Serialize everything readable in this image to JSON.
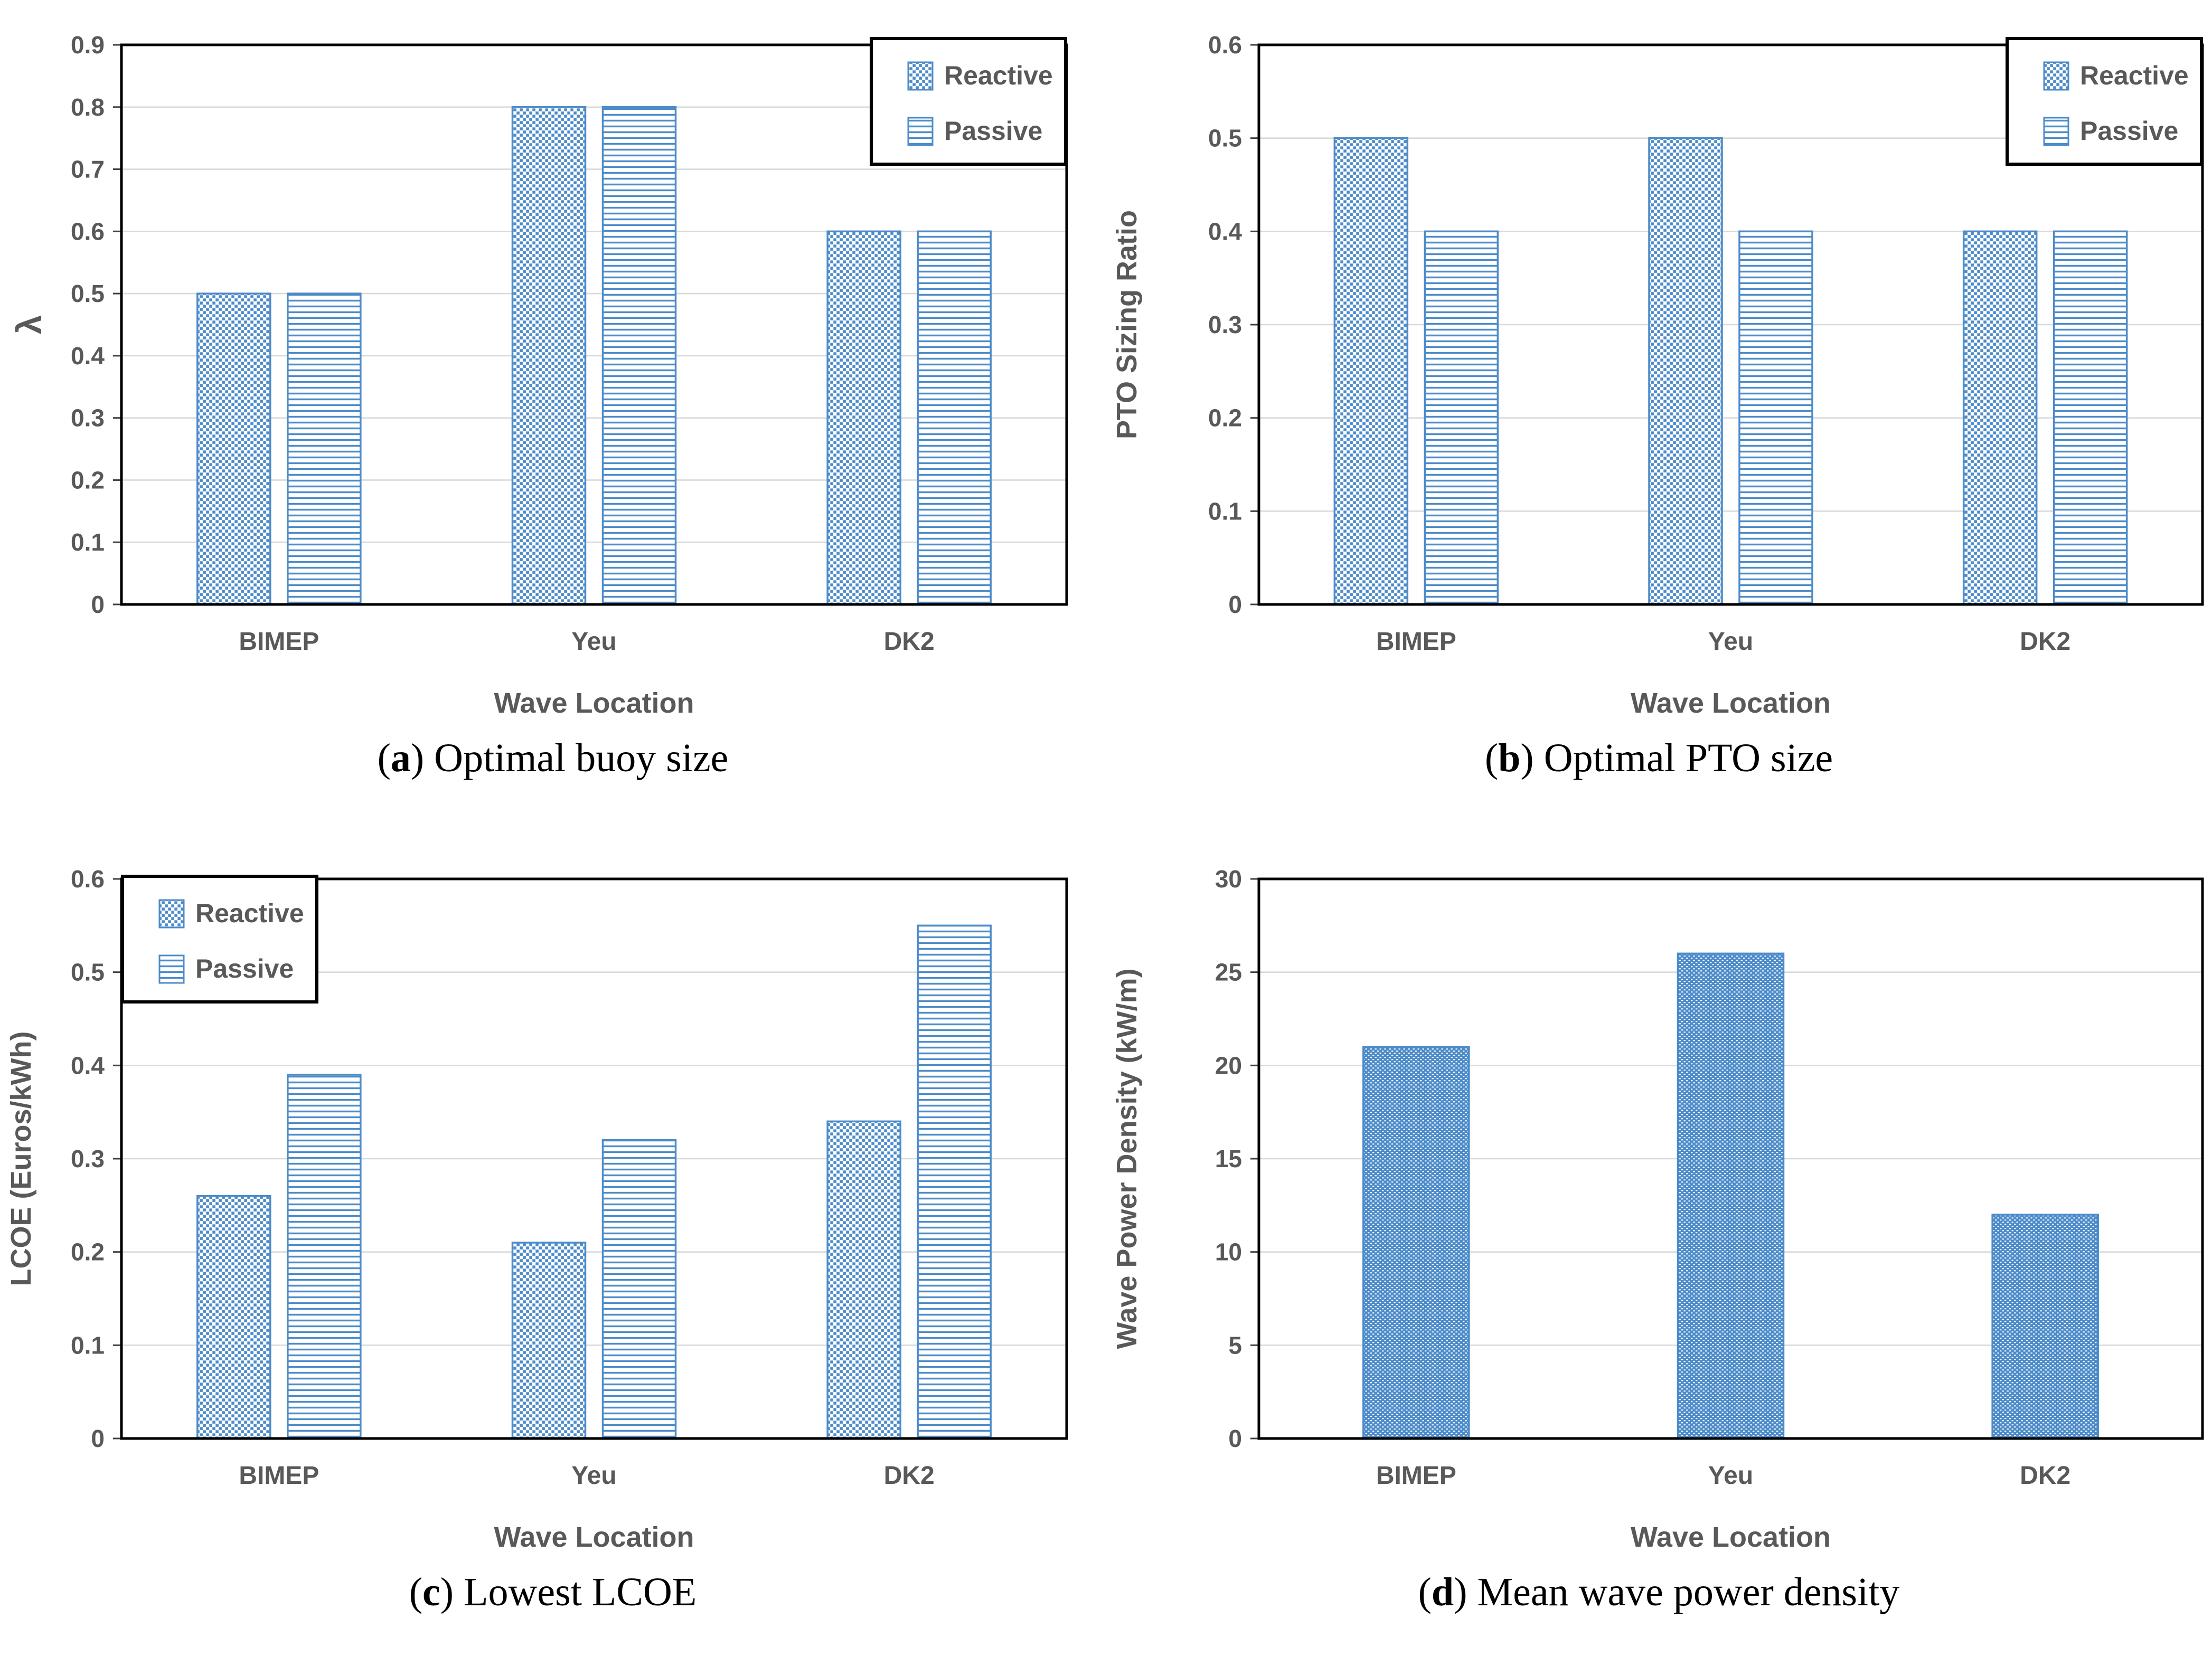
{
  "colors": {
    "bar_blue": "#4C8BC9",
    "grid_line": "#D9D9D9",
    "axis_text": "#595959",
    "plot_border": "#000000",
    "caption_text": "#000000",
    "background": "#FFFFFF"
  },
  "chart_data": [
    {
      "type": "bar",
      "caption": {
        "open": "(",
        "letter": "a",
        "rest": ") Optimal buoy size"
      },
      "xlabel": "Wave Location",
      "ylabel": "λ",
      "categories": [
        "BIMEP",
        "Yeu",
        "DK2"
      ],
      "ylim": [
        0,
        0.9
      ],
      "ystep": 0.1,
      "yticks": [
        "0",
        "0.1",
        "0.2",
        "0.3",
        "0.4",
        "0.5",
        "0.6",
        "0.7",
        "0.8",
        "0.9"
      ],
      "grid": true,
      "legend": {
        "show": true,
        "position": "top-right",
        "items": [
          "Reactive",
          "Passive"
        ]
      },
      "series": [
        {
          "name": "Reactive",
          "pattern": "checker",
          "values": [
            0.5,
            0.8,
            0.6
          ]
        },
        {
          "name": "Passive",
          "pattern": "hlines",
          "values": [
            0.5,
            0.8,
            0.6
          ]
        }
      ]
    },
    {
      "type": "bar",
      "caption": {
        "open": "(",
        "letter": "b",
        "rest": ") Optimal PTO size"
      },
      "xlabel": "Wave Location",
      "ylabel": "PTO Sizing Ratio",
      "categories": [
        "BIMEP",
        "Yeu",
        "DK2"
      ],
      "ylim": [
        0,
        0.6
      ],
      "ystep": 0.1,
      "yticks": [
        "0",
        "0.1",
        "0.2",
        "0.3",
        "0.4",
        "0.5",
        "0.6"
      ],
      "grid": true,
      "legend": {
        "show": true,
        "position": "top-right",
        "items": [
          "Reactive",
          "Passive"
        ]
      },
      "series": [
        {
          "name": "Reactive",
          "pattern": "checker",
          "values": [
            0.5,
            0.5,
            0.4
          ]
        },
        {
          "name": "Passive",
          "pattern": "hlines",
          "values": [
            0.4,
            0.4,
            0.4
          ]
        }
      ]
    },
    {
      "type": "bar",
      "caption": {
        "open": "(",
        "letter": "c",
        "rest": ") Lowest LCOE"
      },
      "xlabel": "Wave Location",
      "ylabel": "LCOE (Euros/kWh)",
      "categories": [
        "BIMEP",
        "Yeu",
        "DK2"
      ],
      "ylim": [
        0,
        0.6
      ],
      "ystep": 0.1,
      "yticks": [
        "0",
        "0.1",
        "0.2",
        "0.3",
        "0.4",
        "0.5",
        "0.6"
      ],
      "grid": true,
      "legend": {
        "show": true,
        "position": "top-left",
        "items": [
          "Reactive",
          "Passive"
        ]
      },
      "series": [
        {
          "name": "Reactive",
          "pattern": "checker",
          "values": [
            0.26,
            0.21,
            0.34
          ]
        },
        {
          "name": "Passive",
          "pattern": "hlines",
          "values": [
            0.39,
            0.32,
            0.55
          ]
        }
      ]
    },
    {
      "type": "bar",
      "caption": {
        "open": "(",
        "letter": "d",
        "rest": ") Mean wave power density"
      },
      "xlabel": "Wave Location",
      "ylabel": "Wave Power Density  (kW/m)",
      "categories": [
        "BIMEP",
        "Yeu",
        "DK2"
      ],
      "ylim": [
        0,
        30
      ],
      "ystep": 5,
      "yticks": [
        "0",
        "5",
        "10",
        "15",
        "20",
        "25",
        "30"
      ],
      "grid": true,
      "legend": {
        "show": false,
        "position": "none",
        "items": []
      },
      "series": [
        {
          "name": "",
          "pattern": "dots",
          "values": [
            21,
            26,
            12
          ]
        }
      ]
    }
  ]
}
